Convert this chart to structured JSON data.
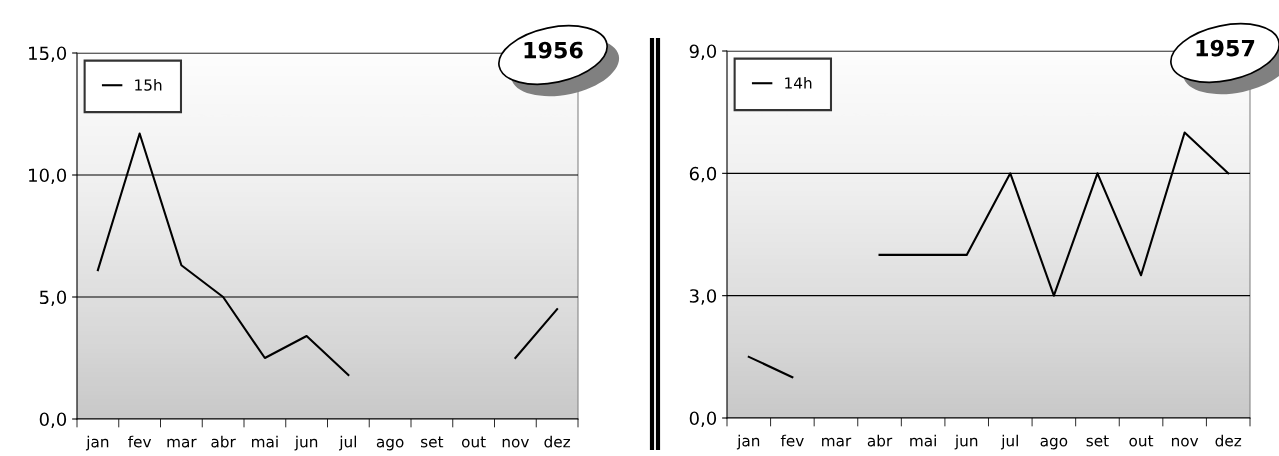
{
  "chart_data": [
    {
      "type": "line",
      "title": "1956",
      "categories": [
        "jan",
        "fev",
        "mar",
        "abr",
        "mai",
        "jun",
        "jul",
        "ago",
        "set",
        "out",
        "nov",
        "dez"
      ],
      "series": [
        {
          "name": "15h",
          "color": "#000000",
          "values": [
            6.1,
            11.7,
            6.3,
            5.0,
            2.5,
            3.4,
            1.8,
            null,
            null,
            null,
            2.5,
            4.5
          ]
        }
      ],
      "ylim": [
        0,
        15
      ],
      "yticks": [
        {
          "value": 0,
          "label": "0,0"
        },
        {
          "value": 5,
          "label": "5,0"
        },
        {
          "value": 10,
          "label": "10,0"
        },
        {
          "value": 15,
          "label": "15,0"
        }
      ],
      "grid": "y",
      "legend": "top left",
      "marker": "none",
      "line_style": "solid"
    },
    {
      "type": "line",
      "title": "1957",
      "categories": [
        "jan",
        "fev",
        "mar",
        "abr",
        "mai",
        "jun",
        "jul",
        "ago",
        "set",
        "out",
        "nov",
        "dez"
      ],
      "series": [
        {
          "name": "14h",
          "color": "#000000",
          "values": [
            1.5,
            1.0,
            null,
            4.0,
            4.0,
            4.0,
            6.0,
            3.0,
            6.0,
            3.5,
            7.0,
            6.0
          ]
        }
      ],
      "ylim": [
        0,
        9
      ],
      "yticks": [
        {
          "value": 0,
          "label": "0,0"
        },
        {
          "value": 3,
          "label": "3,0"
        },
        {
          "value": 6,
          "label": "6,0"
        },
        {
          "value": 9,
          "label": "9,0"
        }
      ],
      "grid": "y",
      "legend": "top left",
      "marker": "none",
      "line_style": "solid"
    }
  ]
}
